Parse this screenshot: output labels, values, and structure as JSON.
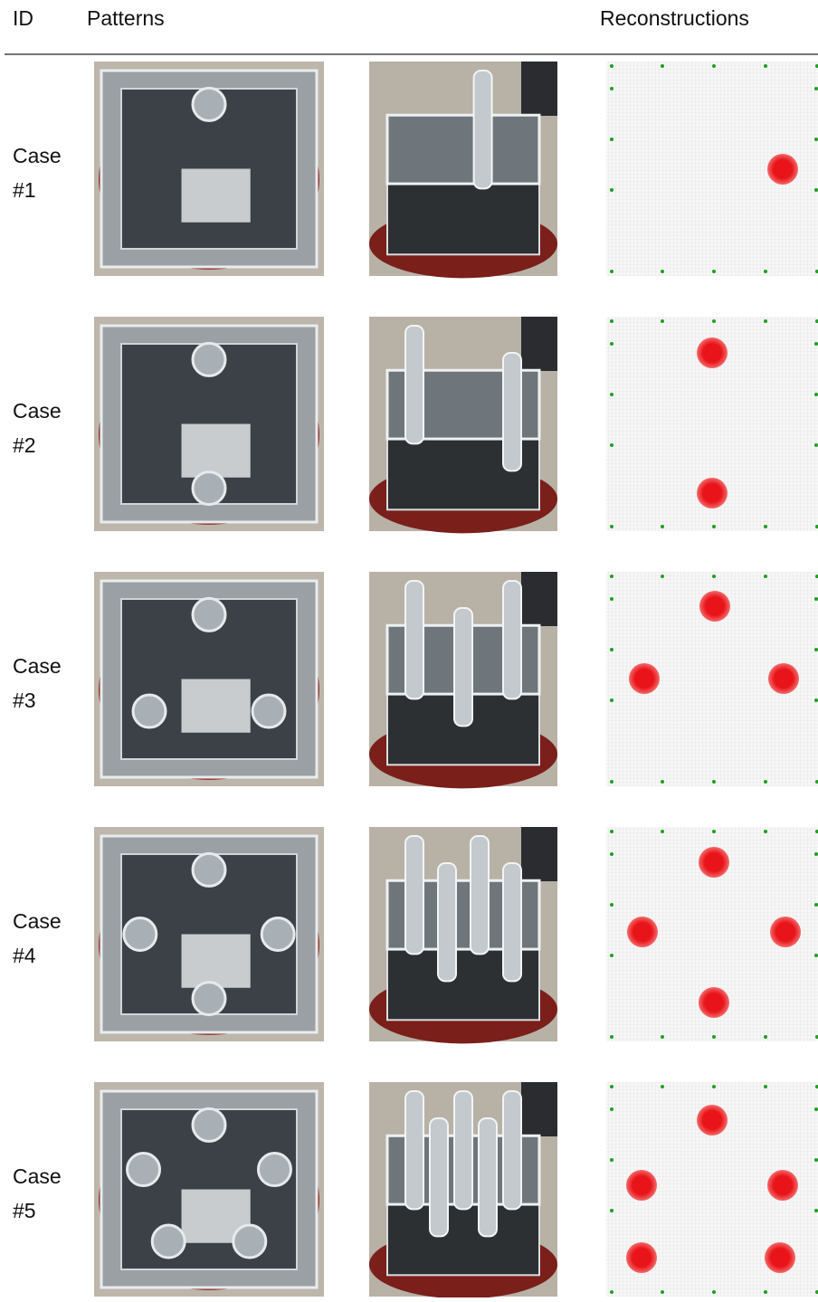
{
  "header": {
    "columns": [
      "ID",
      "Patterns",
      "Reconstructions"
    ]
  },
  "rows": [
    {
      "id": [
        "Case",
        "#1"
      ]
    },
    {
      "id": [
        "Case",
        "#2"
      ]
    },
    {
      "id": [
        "Case",
        "#3"
      ]
    },
    {
      "id": [
        "Case",
        "#4"
      ]
    },
    {
      "id": [
        "Case",
        "#5"
      ]
    }
  ]
}
